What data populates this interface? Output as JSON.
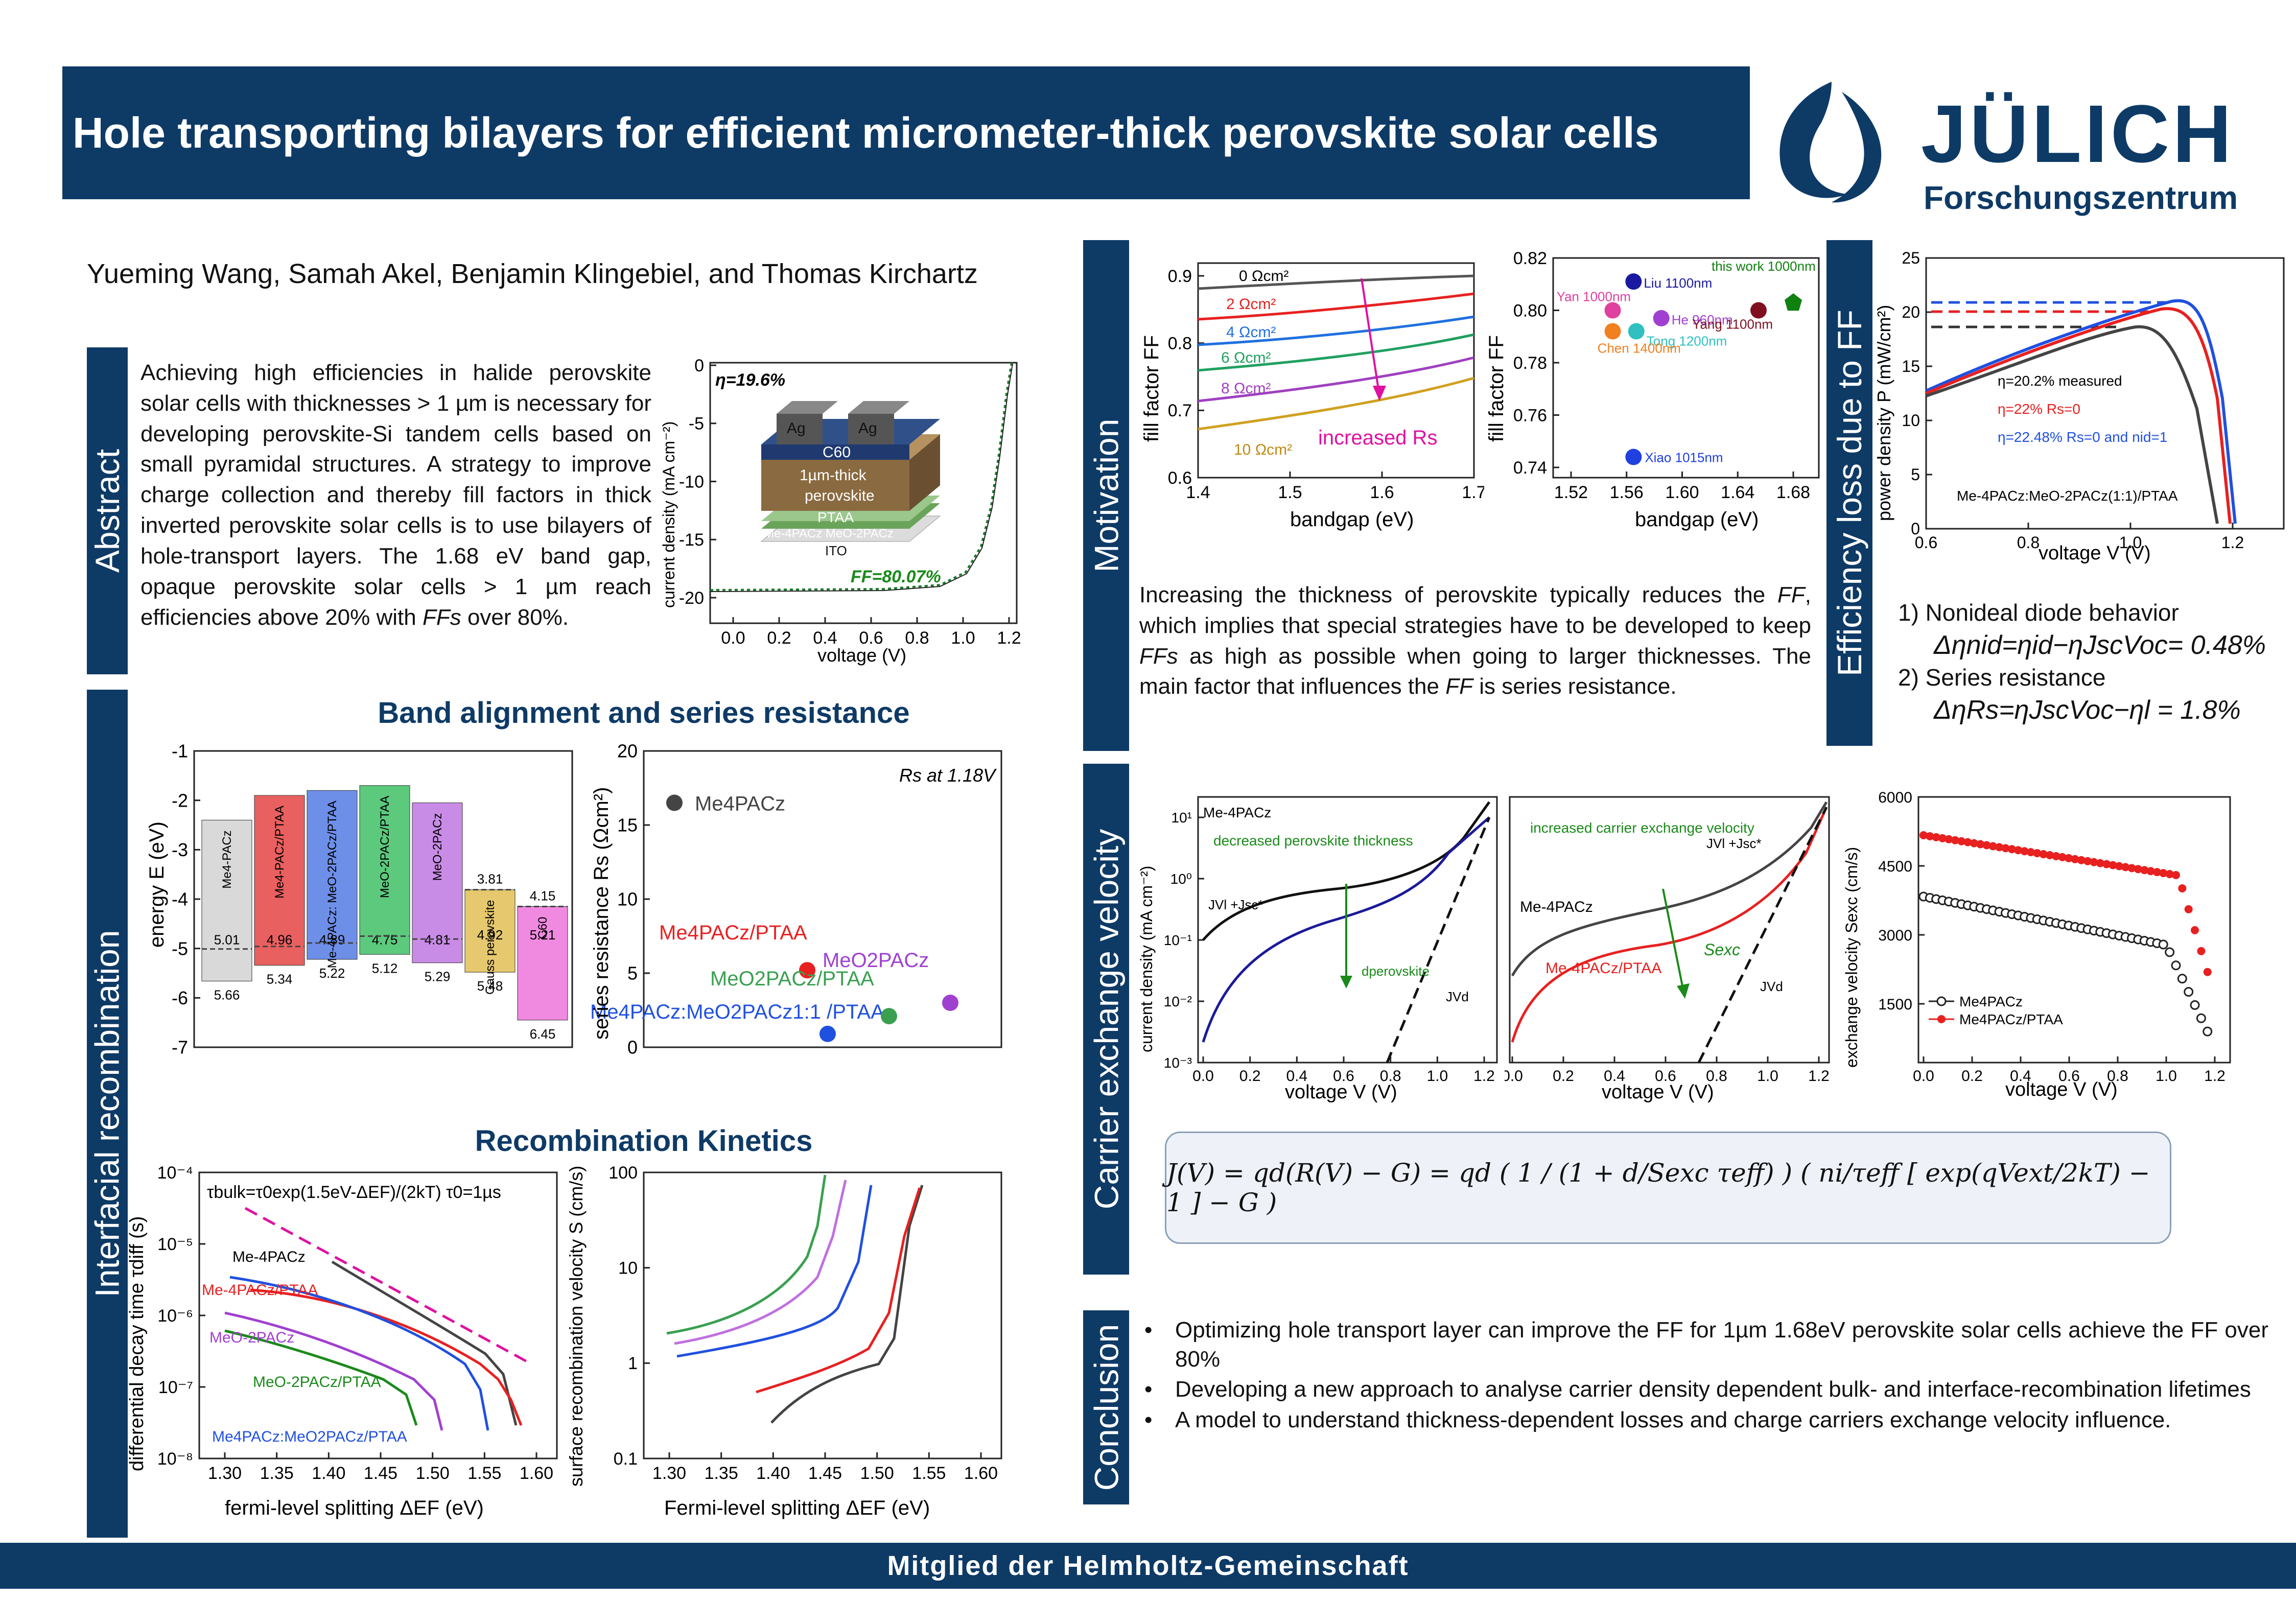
{
  "header": {
    "title": "Hole transporting bilayers for efficient micrometer-thick perovskite solar cells",
    "logo_name": "JÜLICH",
    "logo_sub": "Forschungszentrum"
  },
  "authors": "Yueming Wang, Samah Akel, Benjamin Klingebiel, and Thomas Kirchartz",
  "abstract": {
    "label": "Abstract",
    "text_a": "Achieving high efficiencies in halide perovskite solar cells with thicknesses > 1 µm is necessary for developing perovskite-Si tandem cells based on small pyramidal structures. A strategy to improve charge collection and thereby fill factors in thick inverted perovskite solar cells is to use bilayers of hole-transport layers. The 1.68 eV band gap, opaque perovskite solar cells > 1 µm reach efficiencies above 20% with ",
    "text_ff": "FFs",
    "text_b": " over 80%.",
    "eta_label": "η=19.6%",
    "ff_label": "FF=80.07%",
    "layers": [
      "Ag",
      "Ag",
      "C60",
      "1µm-thick",
      "perovskite",
      "PTAA",
      "Me-4PACz MeO-2PACz",
      "ITO"
    ],
    "chart": {
      "type": "line",
      "xlabel": "voltage (V)",
      "ylabel": "current density (mA cm⁻²)",
      "xticks": [
        "0.0",
        "0.2",
        "0.4",
        "0.6",
        "0.8",
        "1.0",
        "1.2"
      ],
      "yticks": [
        "0",
        "-5",
        "-10",
        "-15",
        "-20"
      ]
    }
  },
  "interfacial": {
    "label": "Interfacial recombination"
  },
  "band": {
    "title": "Band alignment and series resistance",
    "ylabel": "energy E (eV)",
    "yticks": [
      "-1",
      "-2",
      "-3",
      "-4",
      "-5",
      "-6",
      "-7"
    ],
    "columns": [
      {
        "name": "Me4-PACz",
        "color": "#d9d9d9",
        "top": -2.4,
        "bottom": -5.66,
        "top_label": "5.01",
        "bottom_label": "5.66"
      },
      {
        "name": "Me4-PACz/PTAA",
        "color": "#e8605f",
        "top": -1.9,
        "bottom": -5.34,
        "top_label": "4.96",
        "bottom_label": "5.34"
      },
      {
        "name": "Me-4PACz:\nMeO-2PACz/PTAA",
        "color": "#6e8fe8",
        "top": -1.8,
        "bottom": -5.22,
        "top_label": "4.89",
        "bottom_label": "5.22"
      },
      {
        "name": "MeO-2PACz/PTAA",
        "color": "#5cc97d",
        "top": -1.7,
        "bottom": -5.12,
        "top_label": "4.75",
        "bottom_label": "5.12"
      },
      {
        "name": "MeO-2PACz",
        "color": "#c98ce6",
        "top": -2.05,
        "bottom": -5.29,
        "top_label": "4.81",
        "bottom_label": "5.29"
      },
      {
        "name": "Gauss perovskite",
        "color": "#e6c86e",
        "top": -3.81,
        "bottom": -5.48,
        "top_label": "3.81",
        "bottom_label": "5.48",
        "mid_label": "4.92"
      },
      {
        "name": "C60",
        "color": "#f08ae0",
        "top": -4.15,
        "bottom": -6.45,
        "top_label": "4.15",
        "bottom_label": "6.45",
        "mid_label": "5.21"
      }
    ]
  },
  "rs": {
    "note": "Rs at 1.18V",
    "ylabel": "series resistance Rs (Ωcm²)",
    "yticks": [
      "0",
      "5",
      "10",
      "15",
      "20"
    ],
    "points": [
      {
        "label": "Me4PACz",
        "value": 16.5,
        "color": "#444444"
      },
      {
        "label": "Me4PACz/PTAA",
        "value": 5.2,
        "color": "#e82020"
      },
      {
        "label": "Me4PACz:MeO2PACz1:1 /PTAA",
        "value": 0.9,
        "color": "#2050e0"
      },
      {
        "label": "MeO2PACz/PTAA",
        "value": 2.1,
        "color": "#3aa050"
      },
      {
        "label": "MeO2PACz",
        "value": 3.0,
        "color": "#a040d0"
      }
    ]
  },
  "kinetics": {
    "title": "Recombination Kinetics",
    "left": {
      "xlabel": "fermi-level splitting ΔEF (eV)",
      "ylabel": "differential decay time τdiff (s)",
      "xticks": [
        "1.30",
        "1.35",
        "1.40",
        "1.45",
        "1.50",
        "1.55",
        "1.60"
      ],
      "yticks": [
        "10⁻⁴",
        "10⁻⁵",
        "10⁻⁶",
        "10⁻⁷",
        "10⁻⁸"
      ],
      "formula": "τbulk=τ0exp(1.5eV-ΔEF)/(2kT)   τ0=1µs",
      "labels": [
        "Me-4PACz",
        "Me-4PACz/PTAA",
        "MeO-2PACz",
        "MeO-2PACz/PTAA",
        "Me4PACz:MeO2PACz/PTAA"
      ]
    },
    "right": {
      "xlabel": "Fermi-level splitting ΔEF (eV)",
      "ylabel": "surface recombination velocity S (cm/s)",
      "xticks": [
        "1.30",
        "1.35",
        "1.40",
        "1.45",
        "1.50",
        "1.55",
        "1.60"
      ],
      "yticks": [
        "100",
        "10",
        "1",
        "0.1"
      ]
    }
  },
  "motivation": {
    "label": "Motivation",
    "ff_chart": {
      "xlabel": "bandgap (eV)",
      "ylabel": "fill factor FF",
      "xticks": [
        "1.4",
        "1.5",
        "1.6",
        "1.7"
      ],
      "yticks": [
        "0.9",
        "0.8",
        "0.7",
        "0.6"
      ],
      "series": [
        "0 Ωcm²",
        "2 Ωcm²",
        "4 Ωcm²",
        "6 Ωcm²",
        "8 Ωcm²",
        "10 Ωcm²"
      ],
      "arrow_label": "increased Rs"
    },
    "lit_chart": {
      "xlabel": "bandgap (eV)",
      "ylabel": "fill factor FF",
      "xticks": [
        "1.52",
        "1.56",
        "1.60",
        "1.64",
        "1.68"
      ],
      "yticks": [
        "0.82",
        "0.80",
        "0.78",
        "0.76",
        "0.74"
      ],
      "points": [
        {
          "label": "Liu 1100nm",
          "x": 1.565,
          "y": 0.811,
          "color": "#1a1aa0"
        },
        {
          "label": "Yan 1000nm",
          "x": 1.55,
          "y": 0.8,
          "color": "#e040a0"
        },
        {
          "label": "He 960nm",
          "x": 1.585,
          "y": 0.797,
          "color": "#a040d0"
        },
        {
          "label": "Tong 1200nm",
          "x": 1.567,
          "y": 0.792,
          "color": "#30c0c0"
        },
        {
          "label": "Chen 1400nm",
          "x": 1.55,
          "y": 0.792,
          "color": "#f08020"
        },
        {
          "label": "Yang 1100nm",
          "x": 1.655,
          "y": 0.8,
          "color": "#801020"
        },
        {
          "label": "Xiao 1015nm",
          "x": 1.565,
          "y": 0.744,
          "color": "#2040e0"
        },
        {
          "label": "this work 1000nm",
          "x": 1.68,
          "y": 0.803,
          "color": "#108010"
        }
      ]
    },
    "text_a": "Increasing the thickness of perovskite typically reduces the ",
    "text_ff": "FF",
    "text_b": ", which implies that special strategies have to be developed to keep ",
    "text_ffs": "FFs",
    "text_c": " as high as possible when going to larger thicknesses. The main factor that influences the ",
    "text_ff2": "FF",
    "text_d": " is series resistance."
  },
  "efficiency": {
    "label": "Efficiency loss due to FF",
    "xlabel": "voltage V (V)",
    "ylabel": "power density P (mW/cm²)",
    "xticks": [
      "0.6",
      "0.8",
      "1.0",
      "1.2"
    ],
    "yticks": [
      "25",
      "20",
      "15",
      "10",
      "5",
      "0"
    ],
    "legend": [
      "η=20.2% measured",
      "η=22% Rs=0",
      "η=22.48% Rs=0 and nid=1"
    ],
    "device": "Me-4PACz:MeO-2PACz(1:1)/PTAA",
    "item1": "1) Nonideal diode behavior",
    "eq1": "Δηnid=ηid−ηJscVoc= 0.48%",
    "item2": "2) Series resistance",
    "eq2": "ΔηRs=ηJscVoc−ηl = 1.8%"
  },
  "carrier": {
    "label": "Carrier exchange velocity",
    "left": {
      "title": "Me-4PACz",
      "green_label": "decreased perovskite thickness",
      "d_label": "dperovskite",
      "jv_label": "JVl +Jsc*",
      "jvd": "JVd",
      "xlabel": "voltage V (V)",
      "ylabel": "current density (mA cm⁻²)",
      "xticks": [
        "0.0",
        "0.2",
        "0.4",
        "0.6",
        "0.8",
        "1.0",
        "1.2"
      ],
      "yticks": [
        "10¹",
        "10⁰",
        "10⁻¹",
        "10⁻²",
        "10⁻³"
      ]
    },
    "mid": {
      "green_label": "increased carrier exchange velocity",
      "s_label": "Sexc",
      "jv_label": "JVl +Jsc*",
      "jvd": "JVd",
      "black_label": "Me-4PACz",
      "red_label": "Me-4PACz/PTAA",
      "xlabel": "voltage V (V)",
      "xticks": [
        "0.0",
        "0.2",
        "0.4",
        "0.6",
        "0.8",
        "1.0",
        "1.2"
      ]
    },
    "right": {
      "xlabel": "voltage V (V)",
      "ylabel": "exchange velocity Sexc (cm/s)",
      "xticks": [
        "0.0",
        "0.2",
        "0.4",
        "0.6",
        "0.8",
        "1.0",
        "1.2"
      ],
      "yticks": [
        "6000",
        "4500",
        "3000",
        "1500"
      ],
      "legend": [
        "Me4PACz",
        "Me4PACz/PTAA"
      ]
    },
    "equation": "J(V) = qd(R(V) − G) = qd ( 1 / (1 + d/Sexc τeff) ) ( ni/τeff [ exp(qVext/2kT) − 1 ] − G )"
  },
  "conclusion": {
    "label": "Conclusion",
    "items": [
      "Optimizing hole transport layer can improve the FF for 1µm 1.68eV perovskite solar cells achieve the FF over 80%",
      "Developing a new approach to analyse carrier density dependent bulk- and interface-recombination lifetimes",
      "A model to understand thickness-dependent losses and charge carriers exchange velocity influence."
    ]
  },
  "footer": "Mitglied der Helmholtz-Gemeinschaft",
  "colors": {
    "navy": "#0e3a66"
  }
}
